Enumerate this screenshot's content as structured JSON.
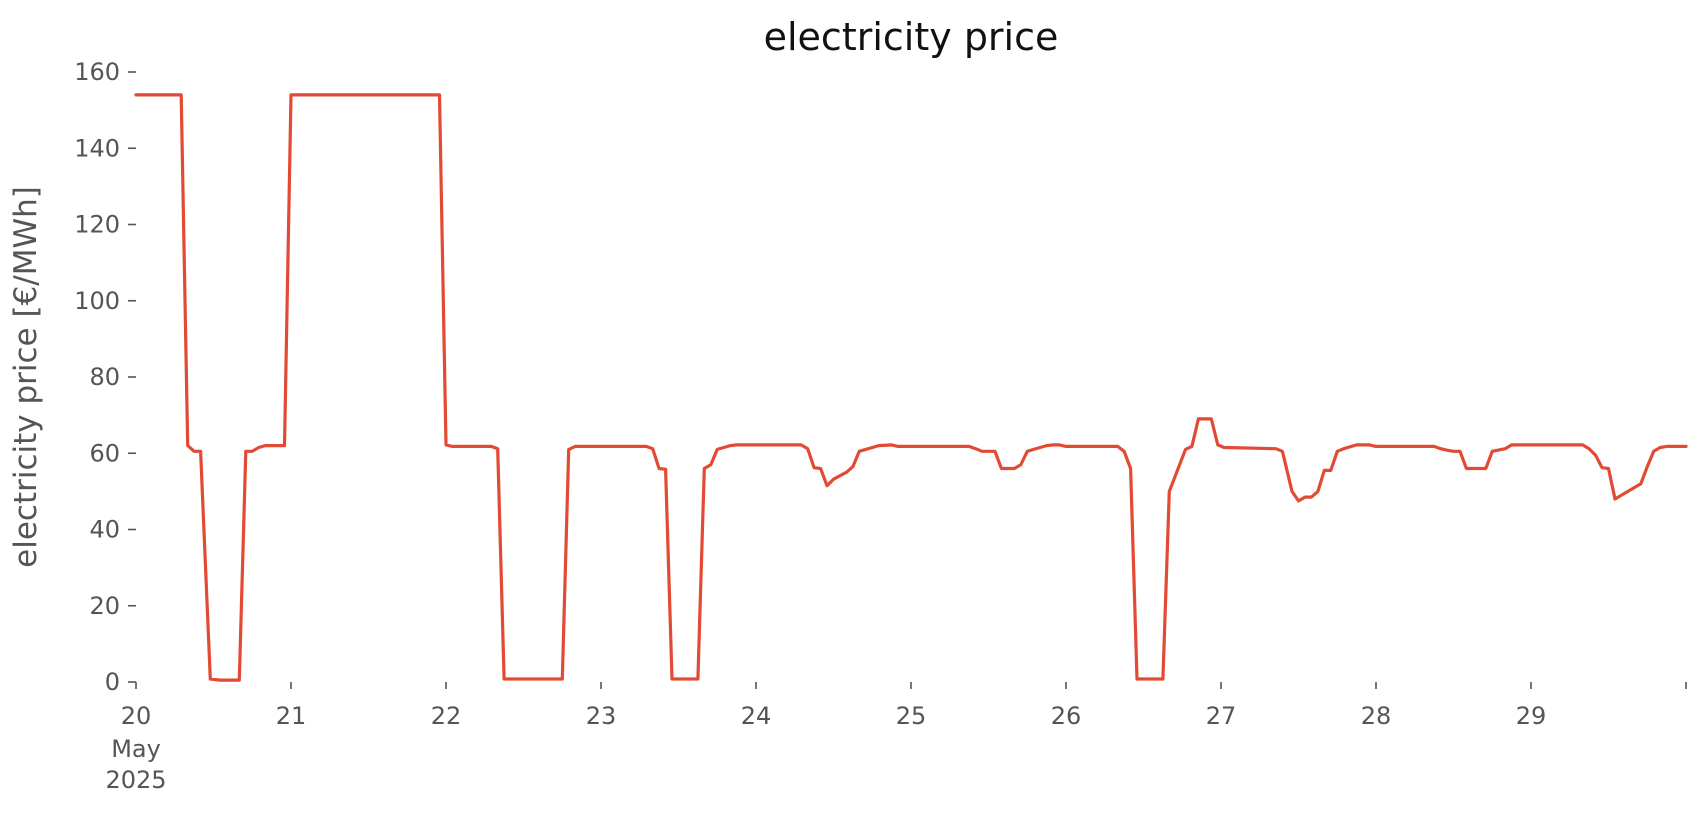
{
  "chart_data": {
    "type": "line",
    "title": "electricity price",
    "xlabel": "",
    "ylabel": "electricity price [€/MWh]",
    "ylim": [
      0,
      160
    ],
    "xlim": [
      "2025-05-20T00:00",
      "2025-05-30T00:00"
    ],
    "grid": false,
    "legend": "none",
    "yticks": [
      0,
      20,
      40,
      60,
      80,
      100,
      120,
      140,
      160
    ],
    "xticks": [
      {
        "value": "2025-05-20T00:00",
        "label": "20",
        "sublabel1": "May",
        "sublabel2": "2025"
      },
      {
        "value": "2025-05-21T00:00",
        "label": "21"
      },
      {
        "value": "2025-05-22T00:00",
        "label": "22"
      },
      {
        "value": "2025-05-23T00:00",
        "label": "23"
      },
      {
        "value": "2025-05-24T00:00",
        "label": "24"
      },
      {
        "value": "2025-05-25T00:00",
        "label": "25"
      },
      {
        "value": "2025-05-26T00:00",
        "label": "26"
      },
      {
        "value": "2025-05-27T00:00",
        "label": "27"
      },
      {
        "value": "2025-05-28T00:00",
        "label": "28"
      },
      {
        "value": "2025-05-29T00:00",
        "label": "29"
      },
      {
        "value": "2025-05-30T00:00",
        "label": ""
      }
    ],
    "series": [
      {
        "color": "#E24A33",
        "points": [
          [
            "2025-05-20T00:00",
            154
          ],
          [
            "2025-05-20T07:00",
            154
          ],
          [
            "2025-05-20T08:00",
            62
          ],
          [
            "2025-05-20T09:00",
            60.5
          ],
          [
            "2025-05-20T10:00",
            60.5
          ],
          [
            "2025-05-20T11:30",
            0.8
          ],
          [
            "2025-05-20T13:00",
            0.5
          ],
          [
            "2025-05-20T16:00",
            0.5
          ],
          [
            "2025-05-20T17:00",
            60.5
          ],
          [
            "2025-05-20T18:00",
            60.5
          ],
          [
            "2025-05-20T19:00",
            61.5
          ],
          [
            "2025-05-20T20:00",
            62
          ],
          [
            "2025-05-20T23:00",
            62
          ],
          [
            "2025-05-21T00:00",
            154
          ],
          [
            "2025-05-21T23:00",
            154
          ],
          [
            "2025-05-22T00:00",
            62.2
          ],
          [
            "2025-05-22T01:00",
            61.8
          ],
          [
            "2025-05-22T07:00",
            61.8
          ],
          [
            "2025-05-22T08:00",
            61.2
          ],
          [
            "2025-05-22T09:00",
            0.8
          ],
          [
            "2025-05-22T18:00",
            0.8
          ],
          [
            "2025-05-22T19:00",
            61
          ],
          [
            "2025-05-22T20:00",
            61.8
          ],
          [
            "2025-05-23T07:00",
            61.8
          ],
          [
            "2025-05-23T08:00",
            61.2
          ],
          [
            "2025-05-23T09:00",
            56
          ],
          [
            "2025-05-23T10:00",
            55.8
          ],
          [
            "2025-05-23T11:00",
            0.8
          ],
          [
            "2025-05-23T15:00",
            0.8
          ],
          [
            "2025-05-23T16:00",
            56
          ],
          [
            "2025-05-23T17:00",
            57
          ],
          [
            "2025-05-23T18:00",
            61
          ],
          [
            "2025-05-23T20:00",
            62
          ],
          [
            "2025-05-23T21:00",
            62.2
          ],
          [
            "2025-05-24T07:00",
            62.2
          ],
          [
            "2025-05-24T08:00",
            61.2
          ],
          [
            "2025-05-24T09:00",
            56.2
          ],
          [
            "2025-05-24T10:00",
            56
          ],
          [
            "2025-05-24T11:00",
            51.5
          ],
          [
            "2025-05-24T12:00",
            53.2
          ],
          [
            "2025-05-24T14:00",
            55
          ],
          [
            "2025-05-24T15:00",
            56.5
          ],
          [
            "2025-05-24T16:00",
            60.5
          ],
          [
            "2025-05-24T19:00",
            62
          ],
          [
            "2025-05-24T21:00",
            62.2
          ],
          [
            "2025-05-24T22:00",
            61.8
          ],
          [
            "2025-05-25T09:00",
            61.8
          ],
          [
            "2025-05-25T10:00",
            61.2
          ],
          [
            "2025-05-25T11:00",
            60.5
          ],
          [
            "2025-05-25T13:00",
            60.5
          ],
          [
            "2025-05-25T14:00",
            56
          ],
          [
            "2025-05-25T16:00",
            56
          ],
          [
            "2025-05-25T17:00",
            57
          ],
          [
            "2025-05-25T18:00",
            60.5
          ],
          [
            "2025-05-25T19:00",
            61
          ],
          [
            "2025-05-25T21:00",
            62
          ],
          [
            "2025-05-25T22:00",
            62.2
          ],
          [
            "2025-05-25T23:00",
            62.2
          ],
          [
            "2025-05-26T00:00",
            61.8
          ],
          [
            "2025-05-26T08:00",
            61.8
          ],
          [
            "2025-05-26T09:00",
            60.5
          ],
          [
            "2025-05-26T10:00",
            56
          ],
          [
            "2025-05-26T11:00",
            0.8
          ],
          [
            "2025-05-26T15:00",
            0.8
          ],
          [
            "2025-05-26T16:00",
            50
          ],
          [
            "2025-05-26T18:30",
            61
          ],
          [
            "2025-05-26T19:30",
            61.8
          ],
          [
            "2025-05-26T20:30",
            69
          ],
          [
            "2025-05-26T22:30",
            69
          ],
          [
            "2025-05-26T23:30",
            62.2
          ],
          [
            "2025-05-27T00:30",
            61.5
          ],
          [
            "2025-05-27T08:30",
            61.2
          ],
          [
            "2025-05-27T09:30",
            60.5
          ],
          [
            "2025-05-27T11:00",
            50
          ],
          [
            "2025-05-27T12:00",
            47.5
          ],
          [
            "2025-05-27T13:00",
            48.5
          ],
          [
            "2025-05-27T14:00",
            48.5
          ],
          [
            "2025-05-27T15:00",
            50
          ],
          [
            "2025-05-27T16:00",
            55.5
          ],
          [
            "2025-05-27T17:00",
            55.5
          ],
          [
            "2025-05-27T18:00",
            60.5
          ],
          [
            "2025-05-27T19:00",
            61.2
          ],
          [
            "2025-05-27T21:00",
            62.2
          ],
          [
            "2025-05-27T23:00",
            62.2
          ],
          [
            "2025-05-28T00:00",
            61.8
          ],
          [
            "2025-05-28T09:00",
            61.8
          ],
          [
            "2025-05-28T10:00",
            61.2
          ],
          [
            "2025-05-28T11:00",
            60.8
          ],
          [
            "2025-05-28T12:00",
            60.5
          ],
          [
            "2025-05-28T13:00",
            60.5
          ],
          [
            "2025-05-28T14:00",
            56
          ],
          [
            "2025-05-28T16:00",
            56
          ],
          [
            "2025-05-28T17:00",
            56
          ],
          [
            "2025-05-28T18:00",
            60.5
          ],
          [
            "2025-05-28T20:00",
            61.2
          ],
          [
            "2025-05-28T21:00",
            62.2
          ],
          [
            "2025-05-29T08:00",
            62.2
          ],
          [
            "2025-05-29T09:00",
            61.2
          ],
          [
            "2025-05-29T10:00",
            59.5
          ],
          [
            "2025-05-29T11:00",
            56.2
          ],
          [
            "2025-05-29T12:00",
            56
          ],
          [
            "2025-05-29T13:00",
            48
          ],
          [
            "2025-05-29T17:00",
            52
          ],
          [
            "2025-05-29T18:00",
            56.5
          ],
          [
            "2025-05-29T19:00",
            60.5
          ],
          [
            "2025-05-29T20:00",
            61.5
          ],
          [
            "2025-05-29T21:00",
            61.8
          ],
          [
            "2025-05-30T00:00",
            61.8
          ]
        ]
      }
    ]
  }
}
